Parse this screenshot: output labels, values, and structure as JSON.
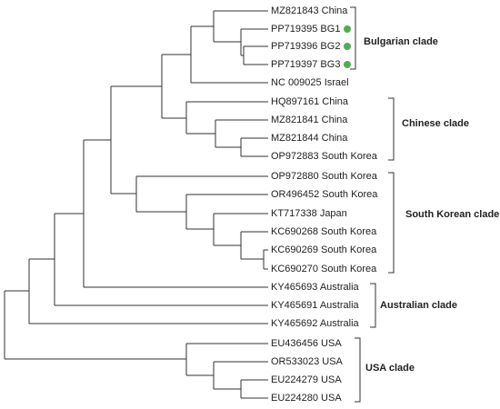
{
  "leaves": [
    "MZ821843 China",
    "PP719395 BG1",
    "PP719396 BG2",
    "PP719397 BG3",
    "NC 009025 Israel",
    "HQ897161 China",
    "MZ821841 China",
    "MZ821844 China",
    "OP972883 South Korea",
    "OP972880 South Korea",
    "OR496452 South Korea",
    "KT717338 Japan",
    "KC690268 South Korea",
    "KC690269 South Korea",
    "KC690270 South Korea",
    "KY465693 Australia",
    "KY465691 Australia",
    "KY465692 Australia",
    "EU436456 USA",
    "OR533023 USA",
    "EU224279 USA",
    "EU224280 USA"
  ],
  "clades": [
    "Bulgarian clade",
    "Chinese clade",
    "South Korean clade",
    "Australian clade",
    "USA clade"
  ]
}
